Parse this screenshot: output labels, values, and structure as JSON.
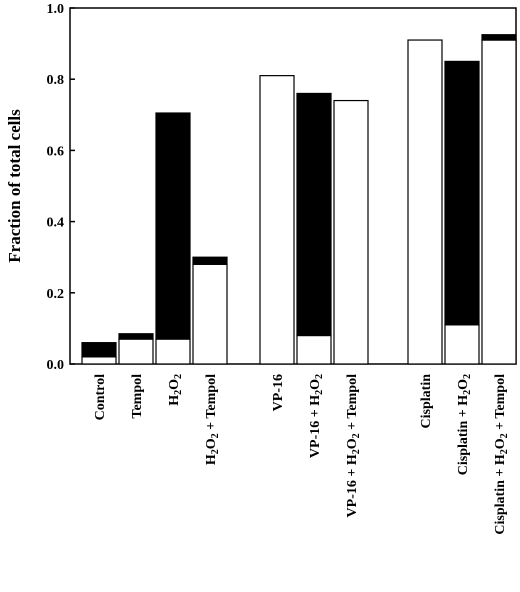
{
  "chart_data": {
    "type": "bar",
    "stacked": true,
    "ylabel": "Fraction of total cells",
    "ylim": [
      0,
      1.0
    ],
    "yticks": [
      {
        "value": 0.0,
        "label": "0.0"
      },
      {
        "value": 0.2,
        "label": "0.2"
      },
      {
        "value": 0.4,
        "label": "0.4"
      },
      {
        "value": 0.6,
        "label": "0.6"
      },
      {
        "value": 0.8,
        "label": "0.8"
      },
      {
        "value": 1.0,
        "label": "1.0"
      }
    ],
    "groups": [
      [
        {
          "label": [
            {
              "t": "Control"
            }
          ],
          "white": 0.02,
          "black": 0.04
        },
        {
          "label": [
            {
              "t": "Tempol"
            }
          ],
          "white": 0.07,
          "black": 0.015
        },
        {
          "label": [
            {
              "t": "H"
            },
            {
              "t": "2",
              "sub": true
            },
            {
              "t": "O"
            },
            {
              "t": "2",
              "sub": true
            }
          ],
          "white": 0.07,
          "black": 0.635
        },
        {
          "label": [
            {
              "t": "H"
            },
            {
              "t": "2",
              "sub": true
            },
            {
              "t": "O"
            },
            {
              "t": "2",
              "sub": true
            },
            {
              "t": " + Tempol"
            }
          ],
          "white": 0.28,
          "black": 0.02
        }
      ],
      [
        {
          "label": [
            {
              "t": "VP-16"
            }
          ],
          "white": 0.81,
          "black": 0.0
        },
        {
          "label": [
            {
              "t": "VP-16 + H"
            },
            {
              "t": "2",
              "sub": true
            },
            {
              "t": "O"
            },
            {
              "t": "2",
              "sub": true
            }
          ],
          "white": 0.08,
          "black": 0.68
        },
        {
          "label": [
            {
              "t": "VP-16 + H"
            },
            {
              "t": "2",
              "sub": true
            },
            {
              "t": "O"
            },
            {
              "t": "2",
              "sub": true
            },
            {
              "t": " + Tempol"
            }
          ],
          "white": 0.74,
          "black": 0.0
        }
      ],
      [
        {
          "label": [
            {
              "t": "Cisplatin"
            }
          ],
          "white": 0.91,
          "black": 0.0
        },
        {
          "label": [
            {
              "t": "Cisplatin + H"
            },
            {
              "t": "2",
              "sub": true
            },
            {
              "t": "O"
            },
            {
              "t": "2",
              "sub": true
            }
          ],
          "white": 0.11,
          "black": 0.74
        },
        {
          "label": [
            {
              "t": "Cisplatin + H"
            },
            {
              "t": "2",
              "sub": true
            },
            {
              "t": "O"
            },
            {
              "t": "2",
              "sub": true
            },
            {
              "t": " + Tempol"
            }
          ],
          "white": 0.91,
          "black": 0.015
        }
      ]
    ],
    "colors": {
      "white": "#ffffff",
      "black": "#000000",
      "stroke": "#000000"
    }
  }
}
